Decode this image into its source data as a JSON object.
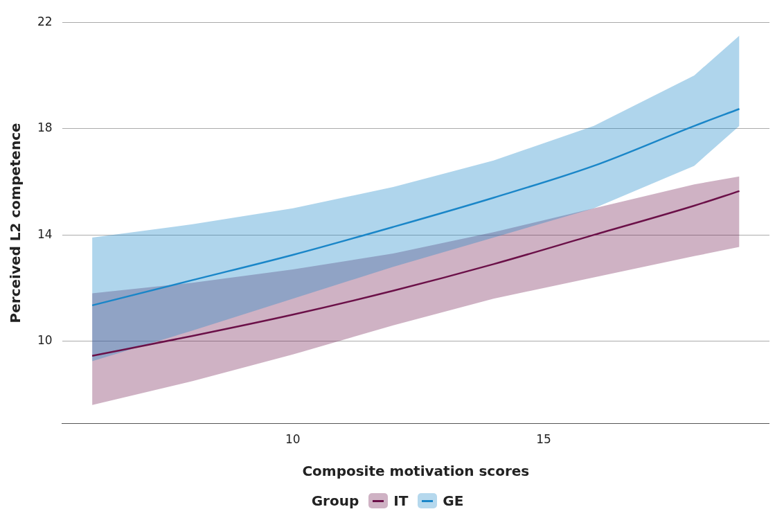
{
  "chart_data": {
    "type": "line",
    "xlabel": "Composite motivation scores",
    "ylabel": "Perceived L2 competence",
    "legend_title": "Group",
    "legend": "bottom",
    "x": [
      6,
      8,
      10,
      12,
      14,
      16,
      18,
      18.9
    ],
    "series": [
      {
        "name": "IT",
        "color": "#6b1048",
        "values": [
          9.45,
          10.2,
          11.0,
          11.9,
          12.9,
          14.0,
          15.1,
          15.65
        ],
        "lower": [
          7.6,
          8.5,
          9.5,
          10.6,
          11.6,
          12.4,
          13.2,
          13.55
        ],
        "upper": [
          11.8,
          12.2,
          12.7,
          13.3,
          14.1,
          15.0,
          15.9,
          16.2
        ]
      },
      {
        "name": "GE",
        "color": "#1a86c8",
        "values": [
          11.35,
          12.3,
          13.25,
          14.3,
          15.4,
          16.6,
          18.1,
          18.74
        ],
        "lower": [
          9.25,
          10.4,
          11.6,
          12.8,
          13.9,
          15.0,
          16.6,
          18.1
        ],
        "upper": [
          13.9,
          14.4,
          15.0,
          15.8,
          16.8,
          18.1,
          20.0,
          21.5
        ]
      }
    ],
    "xlim": [
      5.4,
      19.5
    ],
    "xticks": [
      10,
      15
    ],
    "ylim": [
      6.9,
      22
    ],
    "yticks": [
      10,
      14,
      18,
      22
    ],
    "grid": "y",
    "marker": "none",
    "line_style": "solid"
  }
}
